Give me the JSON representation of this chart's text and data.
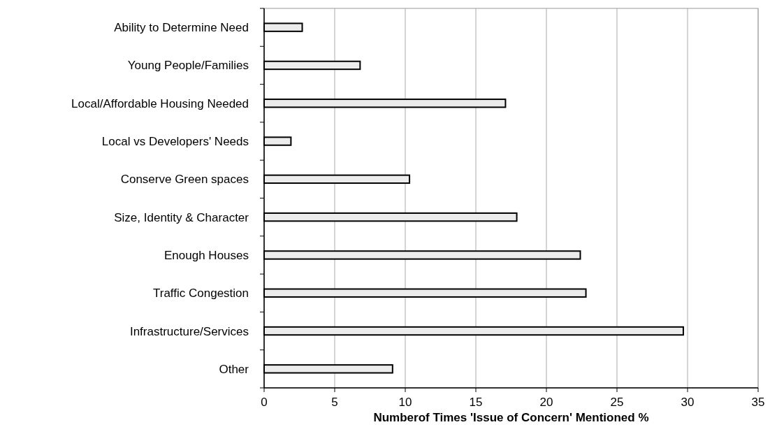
{
  "chart_data": {
    "type": "bar",
    "orientation": "horizontal",
    "xlabel": "Numberof Times 'Issue of Concern' Mentioned %",
    "categories": [
      "Ability to Determine Need",
      "Young People/Families",
      "Local/Affordable Housing Needed",
      "Local vs Developers' Needs",
      "Conserve Green spaces",
      "Size, Identity & Character",
      "Enough Houses",
      "Traffic Congestion",
      "Infrastructure/Services",
      "Other"
    ],
    "values": [
      2.7,
      6.8,
      17.1,
      1.9,
      10.3,
      17.9,
      22.4,
      22.8,
      29.7,
      9.1
    ],
    "color": "#ececec",
    "xlim": [
      0,
      35
    ],
    "xticks": [
      0,
      5,
      10,
      15,
      20,
      25,
      30,
      35
    ],
    "grid": "x"
  }
}
